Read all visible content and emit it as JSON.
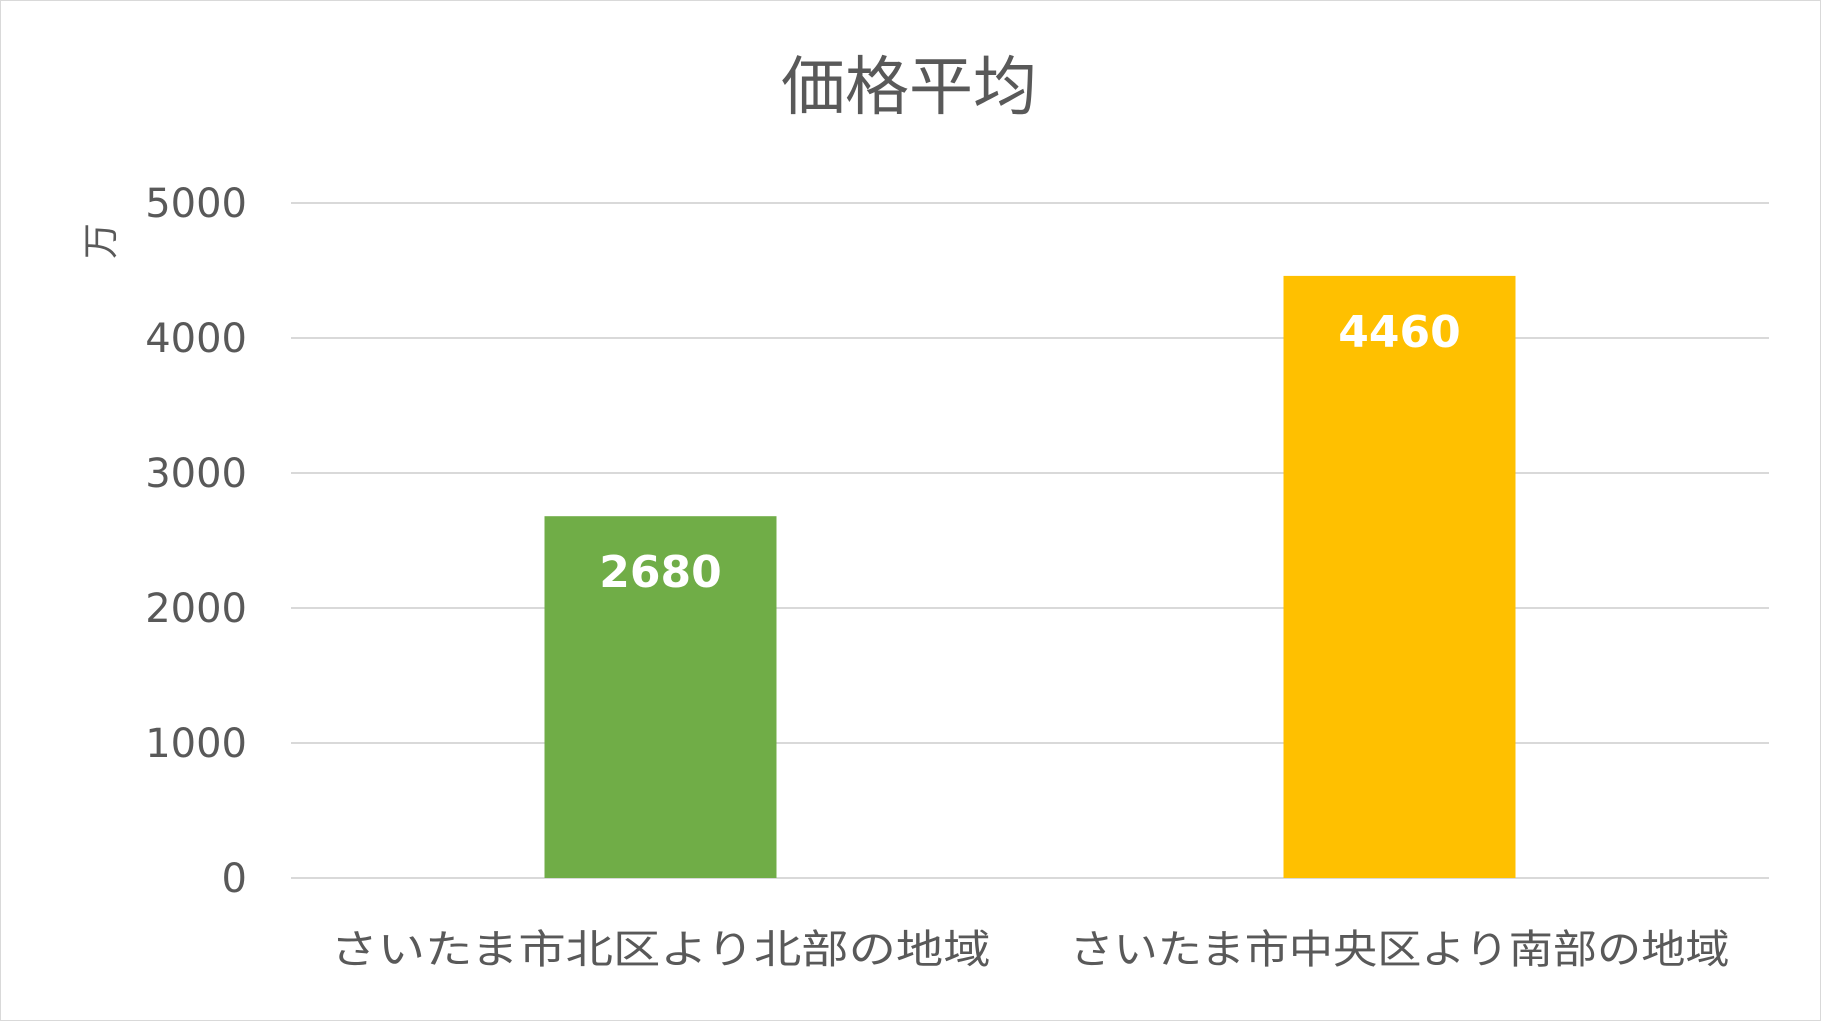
{
  "chart_data": {
    "type": "bar",
    "title": "価格平均",
    "xlabel": "",
    "ylabel": "万",
    "ylim": [
      0,
      5000
    ],
    "yticks": [
      0,
      1000,
      2000,
      3000,
      4000,
      5000
    ],
    "grid": true,
    "legend": "none",
    "categories": [
      "さいたま市北区より北部の地域",
      "さいたま市中央区より南部の地域"
    ],
    "values": [
      2680,
      4460
    ],
    "data_labels": [
      "2680",
      "4460"
    ],
    "colors": [
      "#70ad47",
      "#ffc000"
    ]
  }
}
